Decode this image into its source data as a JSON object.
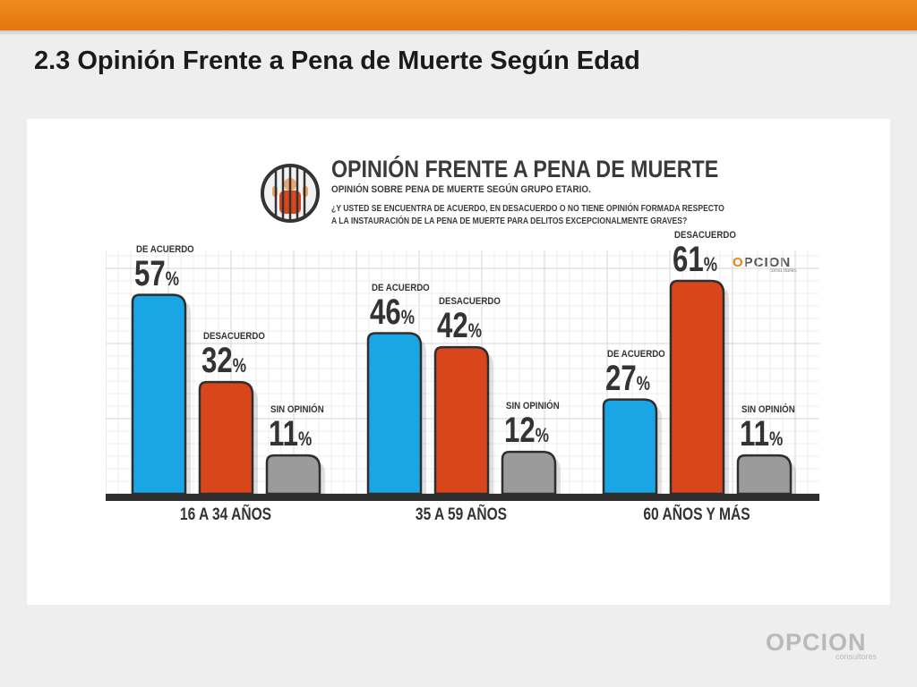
{
  "slide": {
    "title": "2.3 Opinión Frente a Pena de Muerte Según Edad"
  },
  "infographic": {
    "title": "OPINIÓN FRENTE A PENA DE MUERTE",
    "subtitle": "OPINIÓN SOBRE PENA DE MUERTE SEGÚN GRUPO ETARIO.",
    "question_line1": "¿Y USTED SE ENCUENTRA DE ACUERDO, EN DESACUERDO O NO TIENE OPINIÓN FORMADA RESPECTO",
    "question_line2": "A LA INSTAURACIÓN DE LA PENA DE MUERTE PARA DELITOS EXCEPCIONALMENTE GRAVES?",
    "icon": "prison-bars-icon"
  },
  "logos": {
    "small_word": "PCION",
    "small_o": "O",
    "small_sub": "consultores",
    "big_word": "OPCION",
    "big_sub": "consultores"
  },
  "colors": {
    "de_acuerdo": "#1aa6e4",
    "desacuerdo": "#d9461b",
    "sin_opinion": "#9b9b9b",
    "accent_orange": "#e8811e"
  },
  "chart_data": {
    "type": "bar",
    "title": "OPINIÓN FRENTE A PENA DE MUERTE",
    "categories": [
      "16 A 34 AÑOS",
      "35 A 59 AÑOS",
      "60 AÑOS Y MÁS"
    ],
    "series": [
      {
        "name": "DE ACUERDO",
        "values": [
          57,
          46,
          27
        ]
      },
      {
        "name": "DESACUERDO",
        "values": [
          32,
          42,
          61
        ]
      },
      {
        "name": "SIN OPINIÓN",
        "values": [
          11,
          12,
          11
        ]
      }
    ],
    "unit": "%",
    "ylim": [
      0,
      80
    ],
    "grid": true,
    "legend": "none"
  }
}
